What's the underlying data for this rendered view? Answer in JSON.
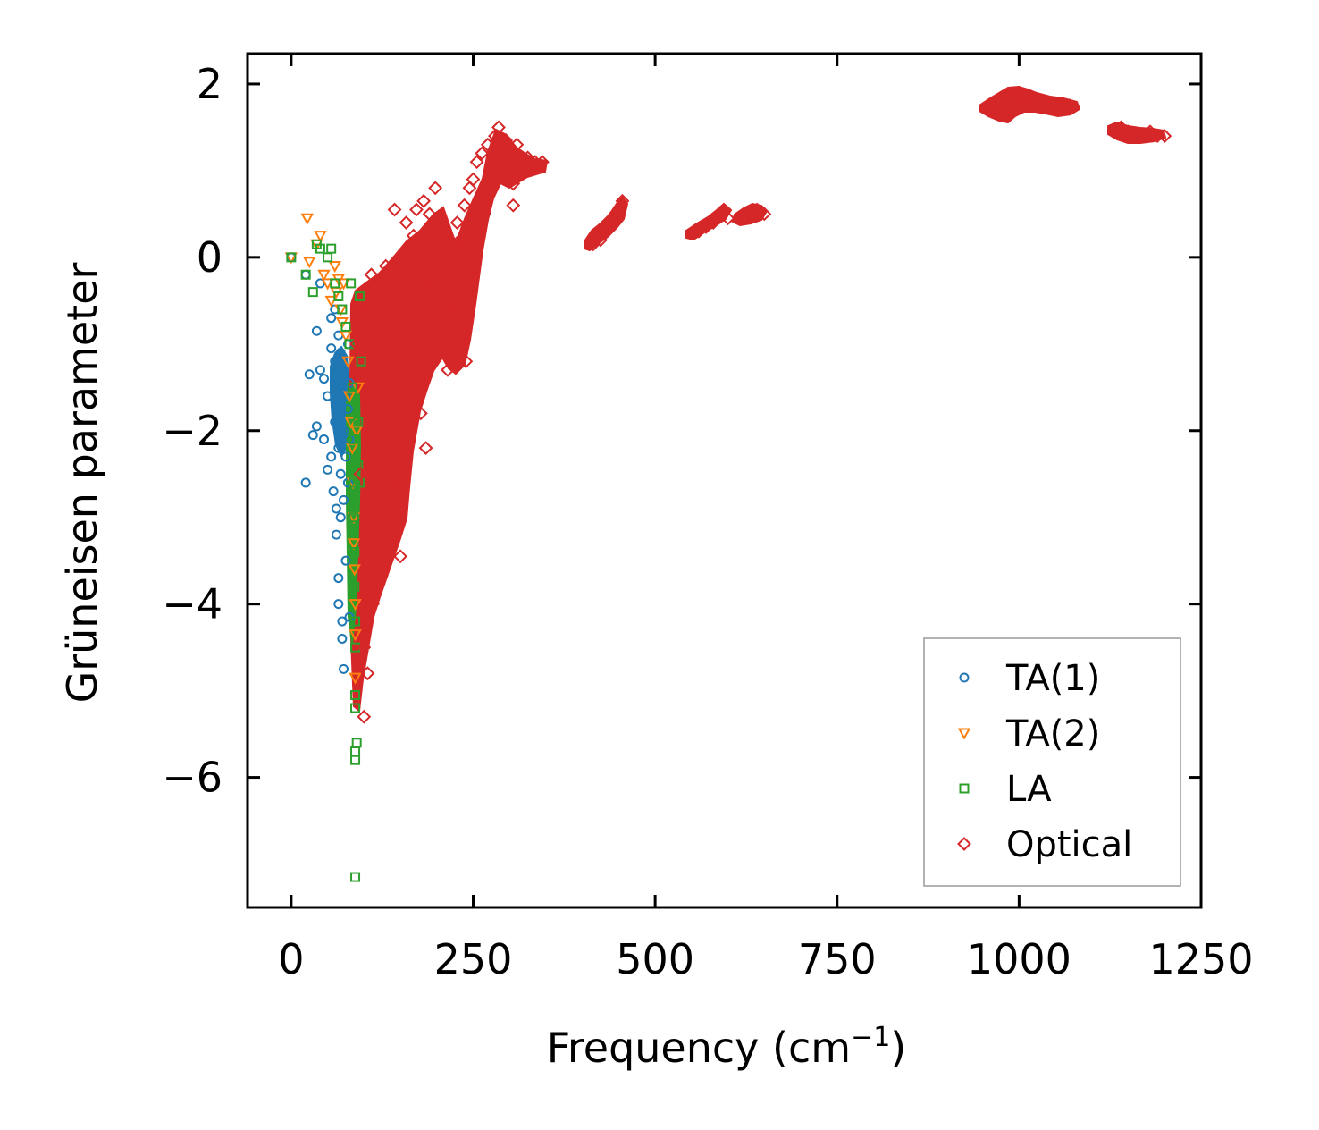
{
  "chart_data": {
    "type": "scatter",
    "title": "",
    "xlabel_main": "Frequency (cm",
    "xlabel_sup": "−1",
    "xlabel_close": ")",
    "ylabel": "Grüneisen parameter",
    "xlim": [
      -60,
      1250
    ],
    "ylim": [
      -7.5,
      2.35
    ],
    "xticks": [
      0,
      250,
      500,
      750,
      1000,
      1250
    ],
    "xtick_labels": [
      "0",
      "250",
      "500",
      "750",
      "1000",
      "1250"
    ],
    "yticks": [
      2,
      0,
      -2,
      -4,
      -6
    ],
    "ytick_labels": [
      "2",
      "0",
      "−2",
      "−4",
      "−6"
    ],
    "legend_position": "lower-right",
    "series": [
      {
        "name": "TA(1)",
        "label": "TA(1)",
        "marker": "circle",
        "color": "#1f77b4",
        "points": [
          [
            0,
            0
          ],
          [
            20,
            -0.2
          ],
          [
            25,
            -1.35
          ],
          [
            20,
            -2.6
          ],
          [
            30,
            -2.05
          ],
          [
            35,
            -1.95
          ],
          [
            35,
            -0.85
          ],
          [
            40,
            -1.3
          ],
          [
            40,
            -0.3
          ],
          [
            45,
            -1.4
          ],
          [
            45,
            -2.1
          ],
          [
            50,
            -1.6
          ],
          [
            50,
            -2.45
          ],
          [
            55,
            -0.7
          ],
          [
            55,
            -1.05
          ],
          [
            55,
            -2.3
          ],
          [
            58,
            -2.7
          ],
          [
            60,
            -0.6
          ],
          [
            60,
            -1.2
          ],
          [
            60,
            -1.9
          ],
          [
            62,
            -2.9
          ],
          [
            62,
            -3.2
          ],
          [
            65,
            -0.9
          ],
          [
            65,
            -1.5
          ],
          [
            65,
            -2.2
          ],
          [
            65,
            -3.7
          ],
          [
            65,
            -4.0
          ],
          [
            68,
            -1.1
          ],
          [
            68,
            -1.8
          ],
          [
            68,
            -2.5
          ],
          [
            68,
            -3.0
          ],
          [
            70,
            -4.2
          ],
          [
            70,
            -4.4
          ],
          [
            72,
            -1.3
          ],
          [
            72,
            -2.0
          ],
          [
            72,
            -2.8
          ],
          [
            72,
            -4.75
          ],
          [
            75,
            -1.6
          ],
          [
            75,
            -2.3
          ],
          [
            75,
            -3.5
          ],
          [
            78,
            -1.0
          ],
          [
            78,
            -1.75
          ],
          [
            78,
            -2.6
          ],
          [
            80,
            -1.45
          ],
          [
            80,
            -2.1
          ],
          [
            80,
            -4.15
          ]
        ]
      },
      {
        "name": "TA(2)",
        "label": "TA(2)",
        "marker": "triangle",
        "color": "#ff7f0e",
        "points": [
          [
            0,
            0
          ],
          [
            22,
            0.45
          ],
          [
            25,
            -0.05
          ],
          [
            35,
            0.15
          ],
          [
            40,
            0.25
          ],
          [
            45,
            -0.2
          ],
          [
            50,
            -0.3
          ],
          [
            55,
            -0.5
          ],
          [
            60,
            -0.1
          ],
          [
            62,
            -0.4
          ],
          [
            65,
            -0.25
          ],
          [
            68,
            -0.6
          ],
          [
            70,
            -0.75
          ],
          [
            72,
            -0.3
          ],
          [
            75,
            -0.9
          ],
          [
            78,
            -1.2
          ],
          [
            80,
            -1.6
          ],
          [
            82,
            -1.9
          ],
          [
            84,
            -2.2
          ],
          [
            85,
            -2.6
          ],
          [
            86,
            -3.0
          ],
          [
            86,
            -3.3
          ],
          [
            87,
            -3.6
          ],
          [
            88,
            -4.0
          ],
          [
            88,
            -4.35
          ],
          [
            88,
            -4.85
          ],
          [
            90,
            -2.0
          ],
          [
            92,
            -1.5
          ]
        ]
      },
      {
        "name": "LA",
        "label": "LA",
        "marker": "square",
        "color": "#2ca02c",
        "points": [
          [
            0,
            0
          ],
          [
            20,
            -0.2
          ],
          [
            30,
            -0.4
          ],
          [
            35,
            0.15
          ],
          [
            40,
            0.1
          ],
          [
            50,
            0
          ],
          [
            55,
            0.1
          ],
          [
            60,
            -0.3
          ],
          [
            65,
            -0.45
          ],
          [
            70,
            -0.6
          ],
          [
            75,
            -0.8
          ],
          [
            80,
            -1.0
          ],
          [
            82,
            -0.3
          ],
          [
            84,
            -1.5
          ],
          [
            85,
            -2.1
          ],
          [
            86,
            -2.6
          ],
          [
            86,
            -3.0
          ],
          [
            87,
            -3.4
          ],
          [
            87,
            -3.8
          ],
          [
            88,
            -4.2
          ],
          [
            88,
            -4.5
          ],
          [
            88,
            -5.05
          ],
          [
            88,
            -5.2
          ],
          [
            88,
            -5.7
          ],
          [
            88,
            -5.8
          ],
          [
            90,
            -5.6
          ],
          [
            88,
            -7.15
          ],
          [
            92,
            -1.9
          ],
          [
            92,
            -2.4
          ],
          [
            94,
            -2.6
          ],
          [
            94,
            -0.45
          ],
          [
            96,
            -1.2
          ]
        ]
      },
      {
        "name": "Optical",
        "label": "Optical",
        "marker": "diamond",
        "color": "#d62728",
        "points": [
          [
            90,
            -1.0
          ],
          [
            95,
            -2.5
          ],
          [
            100,
            -4.5
          ],
          [
            100,
            -5.3
          ],
          [
            102,
            -0.6
          ],
          [
            105,
            -3.8
          ],
          [
            105,
            -4.8
          ],
          [
            108,
            -1.8
          ],
          [
            110,
            -3.0
          ],
          [
            110,
            -0.2
          ],
          [
            112,
            -4.0
          ],
          [
            115,
            -2.2
          ],
          [
            118,
            -1.0
          ],
          [
            120,
            -3.5
          ],
          [
            122,
            -0.5
          ],
          [
            125,
            -2.8
          ],
          [
            128,
            -1.4
          ],
          [
            130,
            -3.2
          ],
          [
            130,
            -0.1
          ],
          [
            132,
            -2.0
          ],
          [
            135,
            -0.6
          ],
          [
            138,
            -3.3
          ],
          [
            140,
            -1.6
          ],
          [
            142,
            0.55
          ],
          [
            145,
            -2.6
          ],
          [
            148,
            -0.9
          ],
          [
            150,
            -3.45
          ],
          [
            150,
            -0.2
          ],
          [
            155,
            -1.3
          ],
          [
            158,
            0.4
          ],
          [
            160,
            -2.0
          ],
          [
            162,
            -0.7
          ],
          [
            165,
            -1.6
          ],
          [
            168,
            0.25
          ],
          [
            170,
            -1.2
          ],
          [
            172,
            0.55
          ],
          [
            175,
            -0.4
          ],
          [
            178,
            -1.8
          ],
          [
            180,
            -0.9
          ],
          [
            182,
            0.65
          ],
          [
            185,
            -2.2
          ],
          [
            188,
            -0.3
          ],
          [
            190,
            0.5
          ],
          [
            195,
            -1.0
          ],
          [
            198,
            0.8
          ],
          [
            200,
            -0.5
          ],
          [
            205,
            0.1
          ],
          [
            210,
            -0.9
          ],
          [
            215,
            -1.3
          ],
          [
            220,
            -0.6
          ],
          [
            225,
            -0.1
          ],
          [
            228,
            0.4
          ],
          [
            232,
            0.2
          ],
          [
            235,
            -0.5
          ],
          [
            238,
            0.6
          ],
          [
            240,
            -1.2
          ],
          [
            245,
            0.8
          ],
          [
            248,
            0.3
          ],
          [
            250,
            0.9
          ],
          [
            255,
            1.1
          ],
          [
            258,
            0.6
          ],
          [
            262,
            1.2
          ],
          [
            265,
            0.5
          ],
          [
            270,
            1.3
          ],
          [
            275,
            1.0
          ],
          [
            280,
            1.4
          ],
          [
            285,
            1.5
          ],
          [
            290,
            1.2
          ],
          [
            295,
            1.35
          ],
          [
            300,
            1.0
          ],
          [
            305,
            0.85
          ],
          [
            310,
            1.3
          ],
          [
            315,
            1.1
          ],
          [
            320,
            1.0
          ],
          [
            325,
            1.15
          ],
          [
            330,
            1.05
          ],
          [
            335,
            1.1
          ],
          [
            340,
            1.05
          ],
          [
            345,
            1.1
          ],
          [
            305,
            0.6
          ],
          [
            415,
            0.15
          ],
          [
            425,
            0.2
          ],
          [
            435,
            0.35
          ],
          [
            445,
            0.5
          ],
          [
            455,
            0.65
          ],
          [
            560,
            0.3
          ],
          [
            570,
            0.35
          ],
          [
            580,
            0.4
          ],
          [
            590,
            0.5
          ],
          [
            600,
            0.45
          ],
          [
            620,
            0.45
          ],
          [
            630,
            0.5
          ],
          [
            640,
            0.55
          ],
          [
            650,
            0.5
          ],
          [
            960,
            1.7
          ],
          [
            970,
            1.75
          ],
          [
            980,
            1.8
          ],
          [
            990,
            1.85
          ],
          [
            1000,
            1.9
          ],
          [
            1010,
            1.85
          ],
          [
            1020,
            1.8
          ],
          [
            1030,
            1.8
          ],
          [
            1040,
            1.75
          ],
          [
            1050,
            1.75
          ],
          [
            1060,
            1.7
          ],
          [
            1070,
            1.75
          ],
          [
            1140,
            1.5
          ],
          [
            1150,
            1.45
          ],
          [
            1160,
            1.4
          ],
          [
            1170,
            1.4
          ],
          [
            1180,
            1.45
          ],
          [
            1190,
            1.4
          ],
          [
            1200,
            1.4
          ]
        ]
      }
    ]
  }
}
